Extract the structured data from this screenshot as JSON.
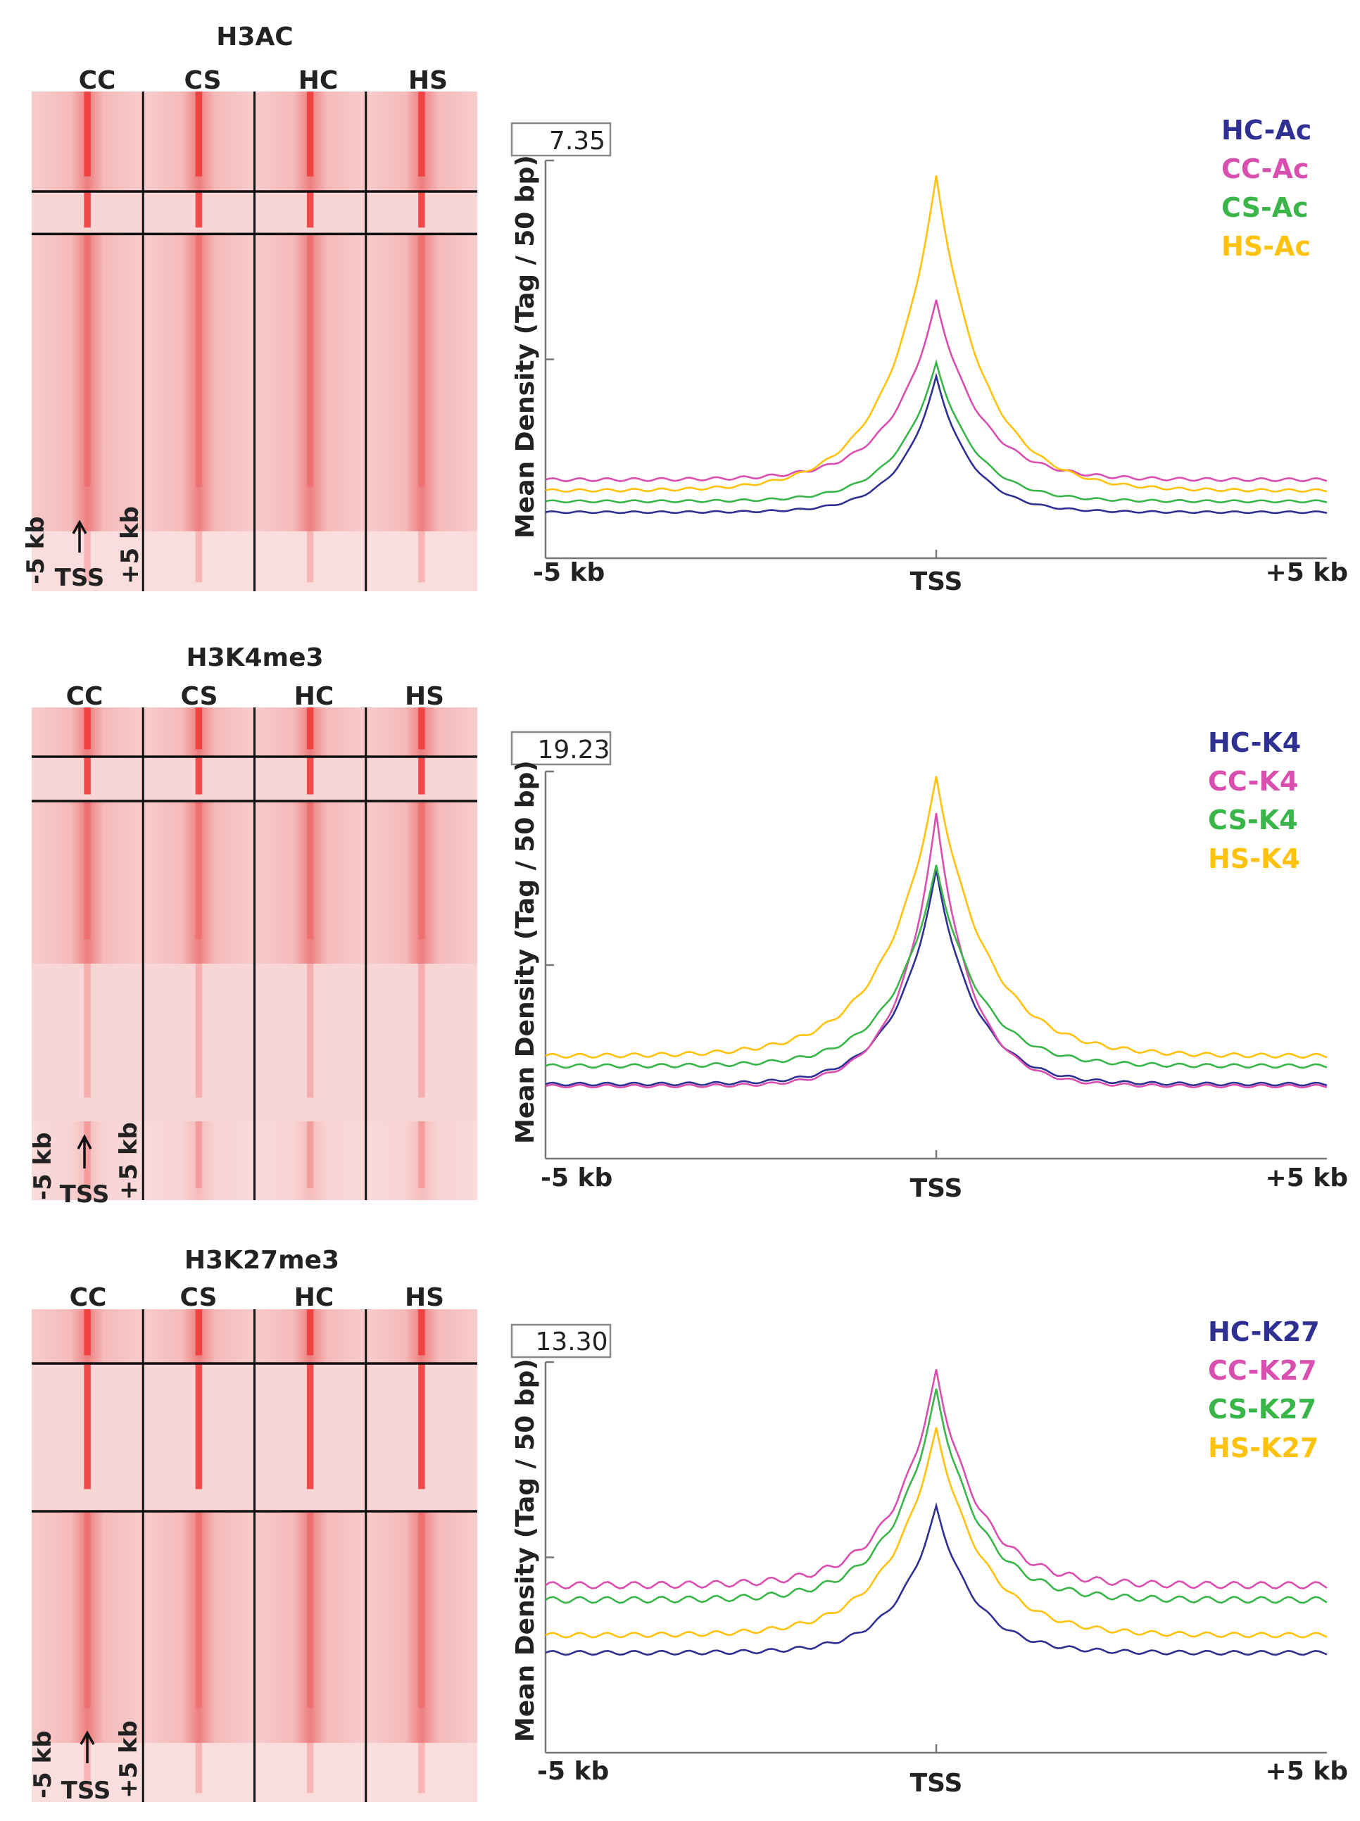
{
  "chart_data": [
    {
      "type": "heatmap",
      "title": "H3AC",
      "columns": [
        "CC",
        "CS",
        "HC",
        "HS"
      ],
      "axis_left": "-5 kb",
      "axis_right": "+5 kb",
      "center_label": "TSS",
      "cluster_breaks": [
        0.2,
        0.285,
        0.88
      ],
      "panel": 0
    },
    {
      "type": "line",
      "panel": 0,
      "ylabel": "Mean Density (Tag / 50 bp)",
      "ymax_label": "7.35",
      "ylim": [
        0,
        7.35
      ],
      "x_labels": [
        "-5 kb",
        "TSS",
        "+5 kb"
      ],
      "xlim": [
        -5,
        5
      ],
      "series": [
        {
          "name": "HC-Ac",
          "color": "#2e3192",
          "base": 0.85,
          "peak": 3.35,
          "width": 0.45
        },
        {
          "name": "CC-Ac",
          "color": "#d94fb0",
          "base": 1.45,
          "peak": 4.75,
          "width": 0.55
        },
        {
          "name": "CS-Ac",
          "color": "#39b54a",
          "base": 1.05,
          "peak": 3.6,
          "width": 0.5
        },
        {
          "name": "HS-Ac",
          "color": "#ffc20e",
          "base": 1.25,
          "peak": 7.05,
          "width": 0.6
        }
      ]
    },
    {
      "type": "heatmap",
      "title": "H3K4me3",
      "columns": [
        "CC",
        "CS",
        "HC",
        "HS"
      ],
      "axis_left": "-5 kb",
      "axis_right": "+5 kb",
      "center_label": "TSS",
      "cluster_breaks": [
        0.1,
        0.19,
        0.52,
        0.84
      ],
      "panel": 1
    },
    {
      "type": "line",
      "panel": 1,
      "ylabel": "Mean Density (Tag / 50 bp)",
      "ymax_label": "19.23",
      "ylim": [
        0,
        19.23
      ],
      "x_labels": [
        "-5 kb",
        "TSS",
        "+5 kb"
      ],
      "xlim": [
        -5,
        5
      ],
      "series": [
        {
          "name": "HC-K4",
          "color": "#2e3192",
          "base": 3.7,
          "peak": 14.3,
          "width": 0.5
        },
        {
          "name": "CC-K4",
          "color": "#d94fb0",
          "base": 3.6,
          "peak": 17.1,
          "width": 0.45
        },
        {
          "name": "CS-K4",
          "color": "#39b54a",
          "base": 4.6,
          "peak": 14.5,
          "width": 0.55
        },
        {
          "name": "HS-K4",
          "color": "#ffc20e",
          "base": 5.1,
          "peak": 18.9,
          "width": 0.65
        }
      ]
    },
    {
      "type": "heatmap",
      "title": "H3K27me3",
      "columns": [
        "CC",
        "CS",
        "HC",
        "HS"
      ],
      "axis_left": "-5 kb",
      "axis_right": "+5 kb",
      "center_label": "TSS",
      "cluster_breaks": [
        0.11,
        0.41,
        0.88
      ],
      "panel": 2
    },
    {
      "type": "line",
      "panel": 2,
      "ylabel": "Mean Density (Tag / 50 bp)",
      "ymax_label": "13.30",
      "ylim": [
        0,
        13.3
      ],
      "x_labels": [
        "-5 kb",
        "TSS",
        "+5 kb"
      ],
      "xlim": [
        -5,
        5
      ],
      "series": [
        {
          "name": "HC-K27",
          "color": "#2e3192",
          "base": 3.4,
          "peak": 8.35,
          "width": 0.5
        },
        {
          "name": "CC-K27",
          "color": "#d94fb0",
          "base": 5.7,
          "peak": 12.95,
          "width": 0.55
        },
        {
          "name": "CS-K27",
          "color": "#39b54a",
          "base": 5.2,
          "peak": 12.3,
          "width": 0.55
        },
        {
          "name": "HS-K27",
          "color": "#ffc20e",
          "base": 4.0,
          "peak": 11.0,
          "width": 0.6
        }
      ]
    }
  ]
}
